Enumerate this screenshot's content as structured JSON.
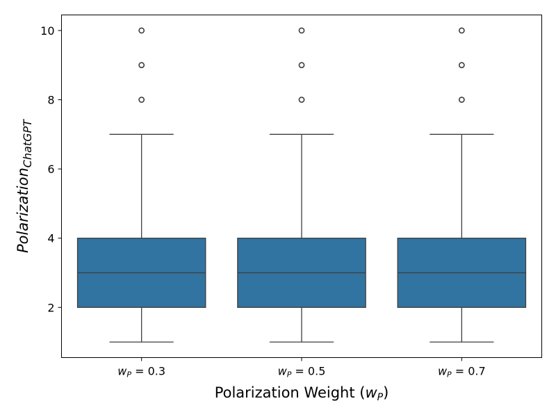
{
  "chart_data": {
    "type": "box",
    "title": "",
    "xlabel": {
      "text": "Polarization Weight (",
      "math": "w",
      "sub": "P",
      "close": ")"
    },
    "ylabel": {
      "main": "Polarization",
      "sub": "ChatGPT"
    },
    "categories": [
      {
        "math": "w",
        "sub": "P",
        "rest": " = 0.3"
      },
      {
        "math": "w",
        "sub": "P",
        "rest": " = 0.5"
      },
      {
        "math": "w",
        "sub": "P",
        "rest": " = 0.7"
      }
    ],
    "ylim": [
      0.55,
      10.45
    ],
    "yticks": [
      2,
      4,
      6,
      8,
      10
    ],
    "boxes": [
      {
        "whisker_low": 1,
        "q1": 2,
        "median": 3,
        "q3": 4,
        "whisker_high": 7,
        "outliers": [
          8,
          9,
          10
        ]
      },
      {
        "whisker_low": 1,
        "q1": 2,
        "median": 3,
        "q3": 4,
        "whisker_high": 7,
        "outliers": [
          8,
          9,
          10
        ]
      },
      {
        "whisker_low": 1,
        "q1": 2,
        "median": 3,
        "q3": 4,
        "whisker_high": 7,
        "outliers": [
          8,
          9,
          10
        ]
      }
    ],
    "box_color": "#3274a1",
    "line_color": "#3d3d3d",
    "grid": false,
    "legend": "none"
  }
}
